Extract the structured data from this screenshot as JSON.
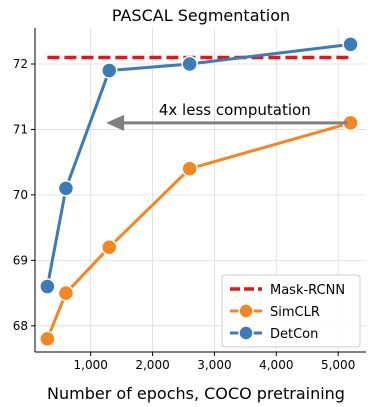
{
  "chart_data": {
    "type": "line",
    "title": "PASCAL Segmentation",
    "xlabel": "Number of epochs, COCO pretraining",
    "ylabel": "",
    "xlim": [
      100,
      5450
    ],
    "ylim": [
      67.6,
      72.55
    ],
    "x_ticks": [
      1000,
      2000,
      3000,
      4000,
      5000
    ],
    "x_tick_labels": [
      "1,000",
      "2,000",
      "3,000",
      "4,000",
      "5,000"
    ],
    "y_ticks": [
      68,
      69,
      70,
      71,
      72
    ],
    "y_tick_labels": [
      "68",
      "69",
      "70",
      "71",
      "72"
    ],
    "grid": true,
    "legend_position": "bottom-right",
    "series": [
      {
        "name": "Mask-RCNN",
        "style": "dashed",
        "color": "#e8141a",
        "x": [
          300,
          5200
        ],
        "y": [
          72.1,
          72.1
        ]
      },
      {
        "name": "SimCLR",
        "style": "solid-marker",
        "color": "#f5861f",
        "x": [
          300,
          600,
          1300,
          2600,
          5200
        ],
        "y": [
          67.8,
          68.5,
          69.2,
          70.4,
          71.1
        ]
      },
      {
        "name": "DetCon",
        "style": "solid-marker",
        "color": "#3a7bb8",
        "x": [
          300,
          600,
          1300,
          2600,
          5200
        ],
        "y": [
          68.6,
          70.1,
          71.9,
          72.0,
          72.3
        ]
      }
    ],
    "annotations": [
      {
        "text": "4x less computation",
        "arrow_from": [
          5150,
          71.1
        ],
        "arrow_to": [
          1250,
          71.1
        ],
        "color": "#7f7f7f"
      }
    ]
  }
}
